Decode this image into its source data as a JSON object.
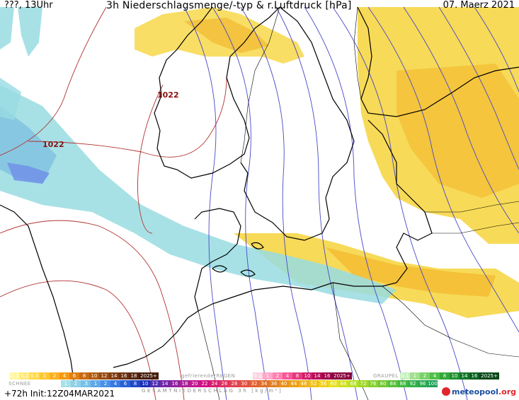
{
  "header": {
    "left": "???, 13Uhr",
    "title": "3h Niederschlagsmenge/-typ & r.Luftdruck [hPa]",
    "date": "07. Maerz 2021"
  },
  "isobar_labels": [
    {
      "value": "1022"
    },
    {
      "value": "1022"
    }
  ],
  "legend": {
    "rain": {
      "values": [
        "0.1",
        "0.2",
        "0.5",
        "1",
        "2",
        "4",
        "6",
        "8",
        "10",
        "12",
        "14",
        "16",
        "18",
        "2025+"
      ],
      "colors": [
        "#fff6a0",
        "#ffe87a",
        "#ffd84a",
        "#ffc830",
        "#ffb020",
        "#f59a10",
        "#e08010",
        "#c86a10",
        "#b05a10",
        "#984a10",
        "#803c10",
        "#6a3010",
        "#562610",
        "#441c0c"
      ]
    },
    "freezing_rain": {
      "label": "gefrierenderREGEN",
      "values": [
        "0.1",
        "1",
        "2",
        "4",
        "8",
        "10",
        "14",
        "16",
        "2025+"
      ],
      "colors": [
        "#ffd0e0",
        "#ffa8c8",
        "#ff80b0",
        "#f85898",
        "#e83880",
        "#d01c68",
        "#b80c58",
        "#a00048",
        "#88003c"
      ]
    },
    "graupel": {
      "label": "GRAUPEL",
      "values": [
        "0.1",
        "1",
        "2",
        "4",
        "8",
        "10",
        "14",
        "16",
        "2025+"
      ],
      "colors": [
        "#c8f0c0",
        "#a0e090",
        "#78d068",
        "#50c048",
        "#30a838",
        "#209030",
        "#107828",
        "#086020",
        "#044818"
      ]
    },
    "snow": {
      "label": "SCHNEE",
      "values": [
        "1",
        "2",
        ".5",
        "1",
        "2",
        "4",
        "6",
        "8",
        "10",
        "12",
        "14",
        "16",
        "18",
        "20",
        "22",
        "24",
        "26",
        "28",
        "30",
        "32",
        "34",
        "36",
        "40",
        "44",
        "48",
        "52",
        "56",
        "60",
        "64",
        "68",
        "72",
        "76",
        "80",
        "84",
        "88",
        "92",
        "96",
        "100"
      ],
      "colors": [
        "#a8e0e8",
        "#90d0e8",
        "#78c0e8",
        "#60a8e8",
        "#4890e8",
        "#3878e0",
        "#2860d8",
        "#2048c8",
        "#1830b8",
        "#5030b0",
        "#7028a8",
        "#9020a0",
        "#a82098",
        "#c01890",
        "#d01080",
        "#d82070",
        "#e03060",
        "#e04050",
        "#e05040",
        "#e06030",
        "#e07028",
        "#e08020",
        "#e89018",
        "#eca018",
        "#f0b018",
        "#f0c018",
        "#f0d018",
        "#e8e020",
        "#d0e020",
        "#b8e028",
        "#a0d828",
        "#88d030",
        "#70c830",
        "#58c038",
        "#40b840",
        "#30b048",
        "#28a850",
        "#20a058"
      ]
    },
    "gesamt_label": "GESAMTNIEDERSCHLAG 3h [kg/m²]"
  },
  "footer": {
    "init": "+72h Init:12Z04MAR2021",
    "brand": "meteopool",
    "brand_suffix": ".org"
  },
  "colors": {
    "isobar_blue": "#4848c8",
    "isobar_red": "#b03030",
    "precip_yellow": "#f5d430",
    "precip_orange": "#f5b020",
    "snow_blue": "#90d8e0",
    "snow_deep": "#7890e8",
    "coast": "#000000"
  }
}
